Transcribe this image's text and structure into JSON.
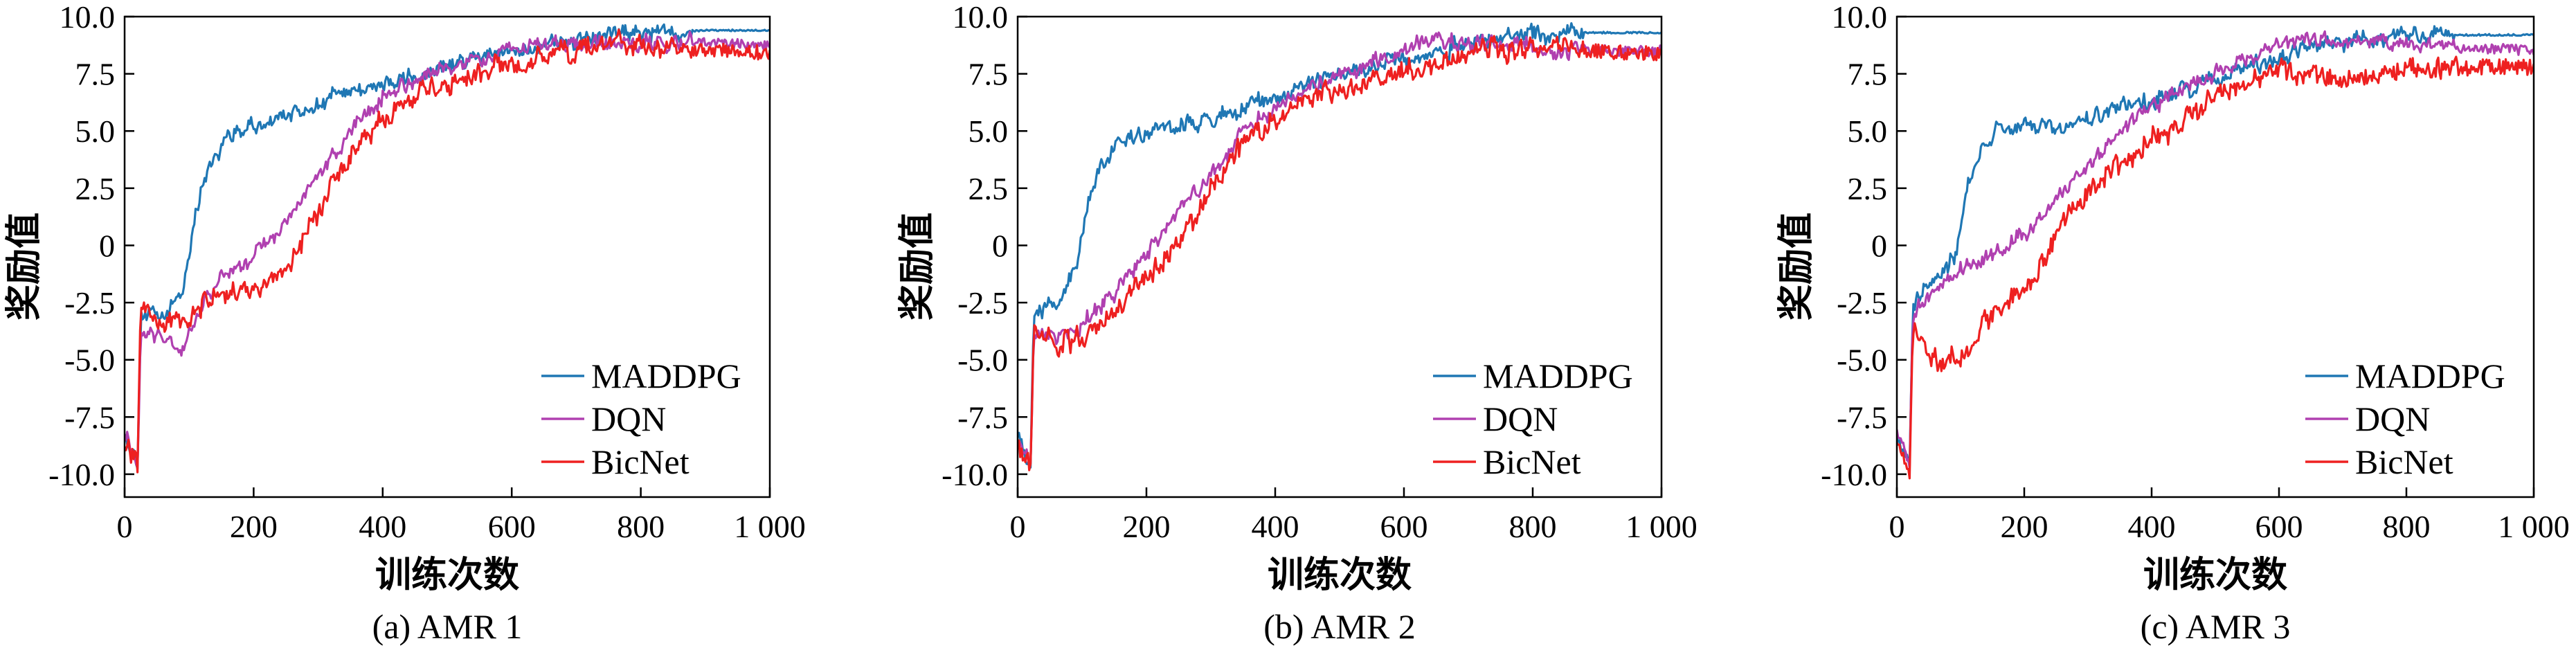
{
  "chart_data": [
    {
      "type": "line",
      "caption": "(a) AMR 1",
      "xlabel": "训练次数",
      "ylabel": "奖励值",
      "xlim": [
        0,
        1000
      ],
      "ylim": [
        -11,
        10
      ],
      "x_ticks": [
        0,
        200,
        400,
        600,
        800,
        1000
      ],
      "x_tick_labels": [
        "0",
        "200",
        "400",
        "600",
        "800",
        "1 000"
      ],
      "y_ticks": [
        10,
        7.5,
        5,
        2.5,
        0,
        -2.5,
        -5,
        -7.5,
        -10
      ],
      "y_tick_labels": [
        "10.0",
        "7.5",
        "5.0",
        "2.5",
        "0",
        "-2.5",
        "-5.0",
        "-7.5",
        "-10.0"
      ],
      "grid": false,
      "legend_position": "bottom-right",
      "series": [
        {
          "name": "MADDPG",
          "color": "#1f77b4",
          "noise": 0.5,
          "x": [
            0,
            20,
            25,
            60,
            90,
            110,
            130,
            160,
            200,
            250,
            300,
            350,
            400,
            450,
            500,
            550,
            600,
            650,
            700,
            750,
            800,
            850,
            900,
            950,
            1000
          ],
          "y": [
            -8.2,
            -9.5,
            -3.0,
            -3.2,
            -2.0,
            1.5,
            3.5,
            4.8,
            5.2,
            5.6,
            6.2,
            6.8,
            7.0,
            7.3,
            7.8,
            8.2,
            8.5,
            8.8,
            9.0,
            9.2,
            9.3,
            9.35,
            9.4,
            9.4,
            9.4
          ]
        },
        {
          "name": "DQN",
          "color": "#b040b0",
          "noise": 0.45,
          "x": [
            0,
            20,
            25,
            60,
            90,
            120,
            150,
            200,
            250,
            300,
            350,
            400,
            450,
            500,
            550,
            600,
            650,
            700,
            750,
            800,
            850,
            900,
            950,
            1000
          ],
          "y": [
            -8.3,
            -9.4,
            -3.5,
            -4.0,
            -4.5,
            -2.5,
            -1.5,
            -0.5,
            1.0,
            3.0,
            5.0,
            6.5,
            7.2,
            7.8,
            8.2,
            8.5,
            8.7,
            8.8,
            8.9,
            8.9,
            8.9,
            8.9,
            8.8,
            8.8
          ]
        },
        {
          "name": "BicNet",
          "color": "#ee2020",
          "noise": 0.65,
          "x": [
            0,
            20,
            25,
            60,
            100,
            150,
            200,
            250,
            300,
            350,
            400,
            450,
            500,
            550,
            600,
            650,
            700,
            750,
            800,
            850,
            900,
            950,
            1000
          ],
          "y": [
            -8.5,
            -9.6,
            -2.5,
            -3.5,
            -3.0,
            -2.2,
            -2.0,
            -1.0,
            1.5,
            4.0,
            5.5,
            6.5,
            7.0,
            7.5,
            8.0,
            8.3,
            8.5,
            8.7,
            8.7,
            8.6,
            8.6,
            8.5,
            8.4
          ]
        }
      ]
    },
    {
      "type": "line",
      "caption": "(b) AMR 2",
      "xlabel": "训练次数",
      "ylabel": "奖励值",
      "xlim": [
        0,
        1000
      ],
      "ylim": [
        -11,
        10
      ],
      "x_ticks": [
        0,
        200,
        400,
        600,
        800,
        1000
      ],
      "x_tick_labels": [
        "0",
        "200",
        "400",
        "600",
        "800",
        "1 000"
      ],
      "y_ticks": [
        10,
        7.5,
        5,
        2.5,
        0,
        -2.5,
        -5,
        -7.5,
        -10
      ],
      "y_tick_labels": [
        "10.0",
        "7.5",
        "5.0",
        "2.5",
        "0",
        "-2.5",
        "-5.0",
        "-7.5",
        "-10.0"
      ],
      "grid": false,
      "legend_position": "bottom-right",
      "series": [
        {
          "name": "MADDPG",
          "color": "#1f77b4",
          "noise": 0.5,
          "x": [
            0,
            20,
            25,
            60,
            90,
            110,
            130,
            160,
            200,
            250,
            300,
            350,
            400,
            450,
            500,
            550,
            600,
            650,
            700,
            750,
            800,
            850,
            900,
            950,
            1000
          ],
          "y": [
            -8.0,
            -9.5,
            -3.0,
            -2.5,
            -1.0,
            2.0,
            3.5,
            4.5,
            5.0,
            5.2,
            5.5,
            6.0,
            6.5,
            7.0,
            7.5,
            7.8,
            8.2,
            8.5,
            8.8,
            9.1,
            9.2,
            9.3,
            9.3,
            9.3,
            9.3
          ]
        },
        {
          "name": "DQN",
          "color": "#b040b0",
          "noise": 0.5,
          "x": [
            0,
            20,
            25,
            60,
            100,
            150,
            200,
            250,
            300,
            350,
            400,
            450,
            500,
            550,
            600,
            650,
            700,
            750,
            800,
            850,
            900,
            950,
            1000
          ],
          "y": [
            -8.2,
            -9.4,
            -3.8,
            -4.0,
            -3.5,
            -2.0,
            -0.5,
            1.5,
            3.0,
            5.0,
            6.0,
            6.8,
            7.5,
            8.0,
            8.5,
            9.0,
            8.8,
            8.8,
            8.7,
            8.6,
            8.5,
            8.5,
            8.5
          ]
        },
        {
          "name": "BicNet",
          "color": "#ee2020",
          "noise": 0.65,
          "x": [
            0,
            20,
            25,
            60,
            100,
            150,
            200,
            250,
            300,
            350,
            400,
            450,
            500,
            550,
            600,
            650,
            700,
            750,
            800,
            850,
            900,
            950,
            1000
          ],
          "y": [
            -8.5,
            -9.6,
            -3.5,
            -4.5,
            -4.0,
            -3.0,
            -1.5,
            0.0,
            2.5,
            4.5,
            5.5,
            6.5,
            6.8,
            7.2,
            7.6,
            8.0,
            8.3,
            8.6,
            8.7,
            8.6,
            8.5,
            8.4,
            8.4
          ]
        }
      ]
    },
    {
      "type": "line",
      "caption": "(c) AMR 3",
      "xlabel": "训练次数",
      "ylabel": "奖励值",
      "xlim": [
        0,
        1000
      ],
      "ylim": [
        -11,
        10
      ],
      "x_ticks": [
        0,
        200,
        400,
        600,
        800,
        1000
      ],
      "x_tick_labels": [
        "0",
        "200",
        "400",
        "600",
        "800",
        "1 000"
      ],
      "y_ticks": [
        10,
        7.5,
        5,
        2.5,
        0,
        -2.5,
        -5,
        -7.5,
        -10
      ],
      "y_tick_labels": [
        "10.0",
        "7.5",
        "5.0",
        "2.5",
        "0",
        "-2.5",
        "-5.0",
        "-7.5",
        "-10.0"
      ],
      "grid": false,
      "legend_position": "bottom-right",
      "series": [
        {
          "name": "MADDPG",
          "color": "#1f77b4",
          "noise": 0.5,
          "x": [
            0,
            20,
            25,
            60,
            90,
            110,
            130,
            160,
            200,
            250,
            300,
            350,
            400,
            450,
            500,
            550,
            600,
            650,
            700,
            750,
            800,
            850,
            900,
            950,
            1000
          ],
          "y": [
            -8.3,
            -9.5,
            -2.5,
            -1.5,
            -0.5,
            2.5,
            4.0,
            5.0,
            5.3,
            5.0,
            5.5,
            6.0,
            6.3,
            6.8,
            7.2,
            7.8,
            8.2,
            8.6,
            8.9,
            9.1,
            9.2,
            9.2,
            9.2,
            9.2,
            9.2
          ]
        },
        {
          "name": "DQN",
          "color": "#b040b0",
          "noise": 0.45,
          "x": [
            0,
            20,
            25,
            60,
            100,
            150,
            200,
            250,
            300,
            350,
            400,
            450,
            500,
            550,
            600,
            650,
            700,
            750,
            800,
            850,
            900,
            950,
            1000
          ],
          "y": [
            -8.0,
            -9.3,
            -3.0,
            -2.0,
            -1.0,
            -0.5,
            0.5,
            2.0,
            3.5,
            5.0,
            6.0,
            6.8,
            7.5,
            8.2,
            8.8,
            9.0,
            9.0,
            8.9,
            8.8,
            8.7,
            8.6,
            8.6,
            8.5
          ]
        },
        {
          "name": "BicNet",
          "color": "#ee2020",
          "noise": 0.7,
          "x": [
            0,
            20,
            25,
            60,
            100,
            150,
            200,
            250,
            300,
            350,
            400,
            450,
            500,
            550,
            600,
            650,
            700,
            750,
            800,
            850,
            900,
            950,
            1000
          ],
          "y": [
            -8.6,
            -9.6,
            -3.5,
            -5.0,
            -5.0,
            -3.0,
            -2.0,
            0.5,
            2.5,
            3.5,
            4.5,
            5.5,
            6.5,
            7.0,
            7.8,
            7.5,
            7.0,
            7.5,
            7.7,
            7.5,
            7.8,
            7.8,
            7.8
          ]
        }
      ]
    }
  ]
}
